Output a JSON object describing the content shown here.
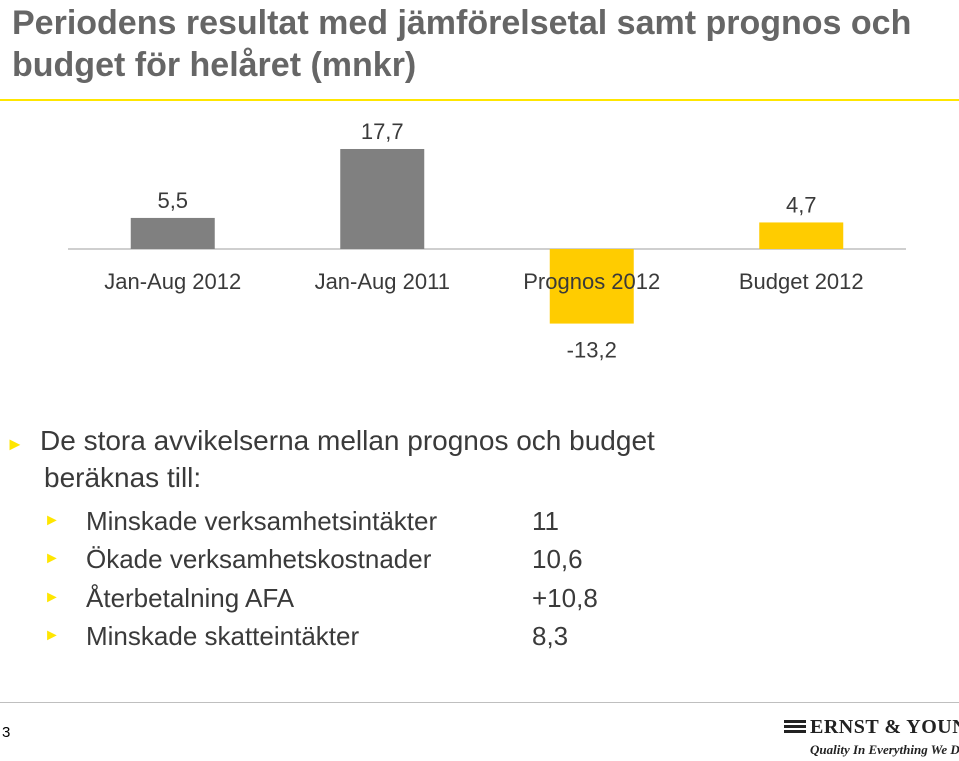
{
  "title": "Periodens resultat med jämförelsetal samt prognos och budget för helåret (mnkr)",
  "chart_data": {
    "type": "bar",
    "categories": [
      "Jan-Aug 2012",
      "Jan-Aug 2011",
      "Prognos 2012",
      "Budget 2012"
    ],
    "values": [
      5.5,
      17.7,
      -13.2,
      4.7
    ],
    "value_labels": [
      "5,5",
      "17,7",
      "-13,2",
      "4,7"
    ],
    "colors": [
      "#808080",
      "#808080",
      "#ffcc00",
      "#ffcc00"
    ],
    "title": "",
    "xlabel": "",
    "ylabel": "",
    "ylim": [
      -13.2,
      17.7
    ],
    "grid": false,
    "legend": "none"
  },
  "bullets": {
    "main": "De stora avvikelserna mellan prognos och budget",
    "main_cont": "beräknas till:",
    "items": [
      {
        "label": "Minskade verksamhetsintäkter",
        "value": "11"
      },
      {
        "label": "Ökade verksamhetskostnader",
        "value": "10,6"
      },
      {
        "label": "Återbetalning AFA",
        "value": "+10,8"
      },
      {
        "label": "Minskade skatteintäkter",
        "value": "8,3"
      }
    ]
  },
  "footer": {
    "page_number": "3",
    "logo_name": "ERNST & YOUNG",
    "logo_tagline": "Quality In Everything We Do"
  },
  "colors": {
    "accent": "#ffe600",
    "bar_gray": "#808080",
    "bar_yellow": "#ffcc00"
  }
}
